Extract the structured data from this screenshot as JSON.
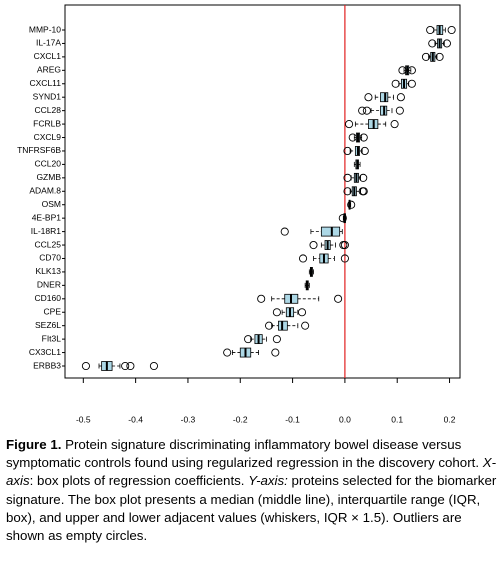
{
  "chart_data": {
    "type": "boxplot",
    "orientation": "horizontal",
    "categories": [
      "MMP-10",
      "IL-17A",
      "CXCL1",
      "AREG",
      "CXCL11",
      "SYND1",
      "CCL28",
      "FCRLB",
      "CXCL9",
      "TNFRSF6B",
      "CCL20",
      "GZMB",
      "ADAM.8",
      "OSM",
      "4E-BP1",
      "IL-18R1",
      "CCL25",
      "CD70",
      "KLK13",
      "DNER",
      "CD160",
      "CPE",
      "SEZ6L",
      "FIt3L",
      "CX3CL1",
      "ERBB3"
    ],
    "boxes": [
      {
        "whislo": 0.17,
        "q1": 0.176,
        "med": 0.181,
        "q3": 0.187,
        "whishi": 0.192,
        "fliers": [
          0.163,
          0.204
        ]
      },
      {
        "whislo": 0.172,
        "q1": 0.177,
        "med": 0.181,
        "q3": 0.185,
        "whishi": 0.19,
        "fliers": [
          0.167,
          0.195
        ]
      },
      {
        "whislo": 0.16,
        "q1": 0.164,
        "med": 0.168,
        "q3": 0.172,
        "whishi": 0.176,
        "fliers": [
          0.155,
          0.181
        ]
      },
      {
        "whislo": 0.113,
        "q1": 0.116,
        "med": 0.119,
        "q3": 0.122,
        "whishi": 0.126,
        "fliers": [
          0.11,
          0.128
        ]
      },
      {
        "whislo": 0.103,
        "q1": 0.108,
        "med": 0.113,
        "q3": 0.118,
        "whishi": 0.122,
        "fliers": [
          0.097,
          0.128
        ]
      },
      {
        "whislo": 0.058,
        "q1": 0.068,
        "med": 0.077,
        "q3": 0.082,
        "whishi": 0.093,
        "fliers": [
          0.045,
          0.107
        ]
      },
      {
        "whislo": 0.05,
        "q1": 0.068,
        "med": 0.075,
        "q3": 0.08,
        "whishi": 0.09,
        "fliers": [
          0.033,
          0.042,
          0.105
        ]
      },
      {
        "whislo": 0.02,
        "q1": 0.045,
        "med": 0.055,
        "q3": 0.063,
        "whishi": 0.078,
        "fliers": [
          0.008,
          0.095
        ]
      },
      {
        "whislo": 0.018,
        "q1": 0.022,
        "med": 0.025,
        "q3": 0.028,
        "whishi": 0.032,
        "fliers": [
          0.015,
          0.036
        ]
      },
      {
        "whislo": 0.01,
        "q1": 0.02,
        "med": 0.025,
        "q3": 0.028,
        "whishi": 0.033,
        "fliers": [
          0.005,
          0.038
        ]
      },
      {
        "whislo": 0.018,
        "q1": 0.021,
        "med": 0.024,
        "q3": 0.026,
        "whishi": 0.029,
        "fliers": []
      },
      {
        "whislo": 0.012,
        "q1": 0.018,
        "med": 0.022,
        "q3": 0.026,
        "whishi": 0.03,
        "fliers": [
          0.005,
          0.035
        ]
      },
      {
        "whislo": 0.01,
        "q1": 0.014,
        "med": 0.018,
        "q3": 0.022,
        "whishi": 0.03,
        "fliers": [
          0.005,
          0.034,
          0.036
        ]
      },
      {
        "whislo": 0.007,
        "q1": 0.008,
        "med": 0.009,
        "q3": 0.01,
        "whishi": 0.011,
        "fliers": [
          0.012
        ]
      },
      {
        "whislo": -0.003,
        "q1": -0.002,
        "med": 0,
        "q3": 0.001,
        "whishi": 0.002,
        "fliers": [
          -0.004
        ]
      },
      {
        "whislo": -0.065,
        "q1": -0.045,
        "med": -0.025,
        "q3": -0.01,
        "whishi": -0.005,
        "fliers": [
          -0.115
        ]
      },
      {
        "whislo": -0.045,
        "q1": -0.038,
        "med": -0.033,
        "q3": -0.028,
        "whishi": -0.018,
        "fliers": [
          -0.06,
          -0.003,
          0
        ]
      },
      {
        "whislo": -0.06,
        "q1": -0.048,
        "med": -0.04,
        "q3": -0.032,
        "whishi": -0.02,
        "fliers": [
          -0.08,
          0
        ]
      },
      {
        "whislo": -0.068,
        "q1": -0.066,
        "med": -0.064,
        "q3": -0.062,
        "whishi": -0.06,
        "fliers": []
      },
      {
        "whislo": -0.076,
        "q1": -0.074,
        "med": -0.072,
        "q3": -0.07,
        "whishi": -0.068,
        "fliers": []
      },
      {
        "whislo": -0.14,
        "q1": -0.115,
        "med": -0.103,
        "q3": -0.09,
        "whishi": -0.05,
        "fliers": [
          -0.16,
          -0.013
        ]
      },
      {
        "whislo": -0.12,
        "q1": -0.112,
        "med": -0.105,
        "q3": -0.098,
        "whishi": -0.09,
        "fliers": [
          -0.13,
          -0.082
        ]
      },
      {
        "whislo": -0.14,
        "q1": -0.127,
        "med": -0.12,
        "q3": -0.11,
        "whishi": -0.09,
        "fliers": [
          -0.145,
          -0.076
        ]
      },
      {
        "whislo": -0.18,
        "q1": -0.172,
        "med": -0.165,
        "q3": -0.158,
        "whishi": -0.15,
        "fliers": [
          -0.185,
          -0.13
        ]
      },
      {
        "whislo": -0.215,
        "q1": -0.2,
        "med": -0.19,
        "q3": -0.18,
        "whishi": -0.165,
        "fliers": [
          -0.225,
          -0.133
        ]
      },
      {
        "whislo": -0.47,
        "q1": -0.465,
        "med": -0.455,
        "q3": -0.445,
        "whishi": -0.43,
        "fliers": [
          -0.495,
          -0.42,
          -0.41,
          -0.365
        ]
      }
    ],
    "box_color": "#add8e6",
    "reference_line": 0,
    "reference_color": "#e02020",
    "xlim": [
      -0.535,
      0.22
    ],
    "xticks": [
      -0.5,
      -0.4,
      -0.3,
      -0.2,
      -0.1,
      {
        "value": 0,
        "label": "0.0"
      },
      0.1,
      0.2
    ],
    "caption": [
      {
        "text": "Figure 1.",
        "style": "bold"
      },
      {
        "text": " Protein signature discriminating inflammatory bowel disease versus symptomatic controls found using regularized regression in the discovery cohort. "
      },
      {
        "text": "X-axis",
        "style": "italic"
      },
      {
        "text": ": box plots of regression coefficients. "
      },
      {
        "text": "Y-axis:",
        "style": "italic"
      },
      {
        "text": " proteins selected for the biomarker signature. The box plot presents a median (middle line), interquartile range (IQR, box), and upper and lower adjacent values (whiskers, IQR × 1.5). Outliers are shown as empty circles."
      }
    ]
  }
}
